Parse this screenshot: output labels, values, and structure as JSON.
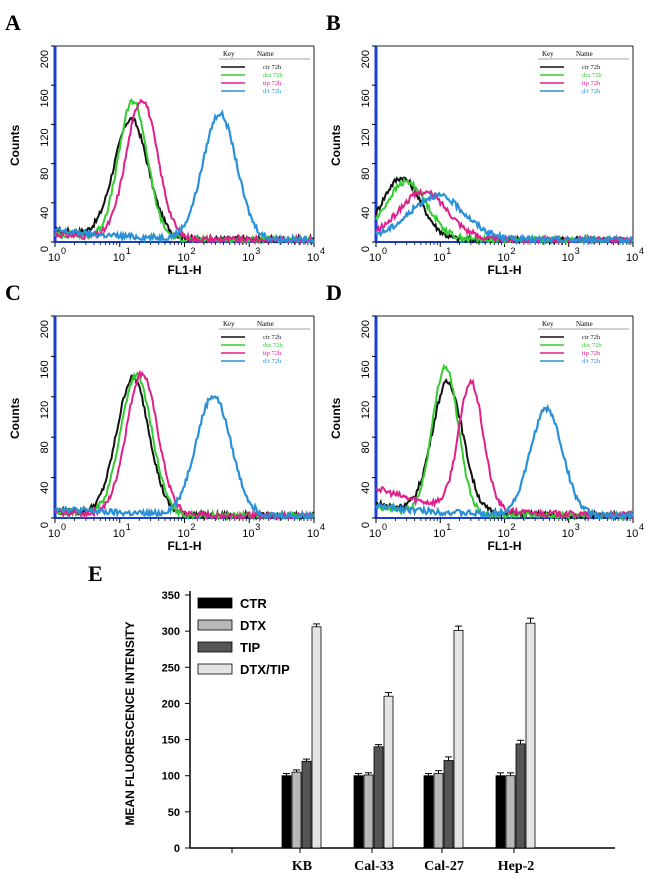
{
  "histograms": [
    {
      "panel_letter": "A",
      "ylabel": "Counts",
      "xlabel": "FL1-H",
      "x_ticks": [
        "10",
        "10",
        "10",
        "10",
        "10"
      ],
      "x_exponents": [
        "0",
        "1",
        "2",
        "3",
        "4"
      ],
      "y_ticks": [
        "0",
        "40",
        "80",
        "120",
        "160",
        "200"
      ],
      "legend": {
        "key_header": "Key",
        "name_header": "Name",
        "entries": [
          "ctr 72h",
          "dtx 72h",
          "tip 72h",
          "d/t 72h"
        ]
      },
      "colors": [
        "#111111",
        "#33cc33",
        "#e0208a",
        "#2a90d8"
      ],
      "curves": [
        {
          "name": "ctr 72h",
          "peak_x": 15,
          "peak_y": 120,
          "sigma": 0.26,
          "bg": 10
        },
        {
          "name": "dtx 72h",
          "peak_x": 16,
          "peak_y": 140,
          "sigma": 0.22,
          "bg": 6
        },
        {
          "name": "tip 72h",
          "peak_x": 22,
          "peak_y": 142,
          "sigma": 0.24,
          "bg": 6
        },
        {
          "name": "d/t 72h",
          "peak_x": 350,
          "peak_y": 128,
          "sigma": 0.26,
          "bg": 10
        }
      ]
    },
    {
      "panel_letter": "B",
      "ylabel": "Counts",
      "xlabel": "FL1-H",
      "x_ticks": [
        "10",
        "10",
        "10",
        "10",
        "10"
      ],
      "x_exponents": [
        "0",
        "1",
        "2",
        "3",
        "4"
      ],
      "y_ticks": [
        "0",
        "40",
        "80",
        "120",
        "160",
        "200"
      ],
      "legend": {
        "key_header": "Key",
        "name_header": "Name",
        "entries": [
          "ctr 72h",
          "dtx 72h",
          "tip 72h",
          "d/t 72h"
        ]
      },
      "colors": [
        "#111111",
        "#33cc33",
        "#e0208a",
        "#2a90d8"
      ],
      "curves": [
        {
          "name": "ctr 72h",
          "peak_x": 2.5,
          "peak_y": 62,
          "sigma": 0.3,
          "bg": 2
        },
        {
          "name": "dtx 72h",
          "peak_x": 3,
          "peak_y": 58,
          "sigma": 0.32,
          "bg": 2
        },
        {
          "name": "tip 72h",
          "peak_x": 5.5,
          "peak_y": 48,
          "sigma": 0.38,
          "bg": 2
        },
        {
          "name": "d/t 72h",
          "peak_x": 9,
          "peak_y": 44,
          "sigma": 0.42,
          "bg": 3
        }
      ]
    },
    {
      "panel_letter": "C",
      "ylabel": "Counts",
      "xlabel": "FL1-H",
      "x_ticks": [
        "10",
        "10",
        "10",
        "10",
        "10"
      ],
      "x_exponents": [
        "0",
        "1",
        "2",
        "3",
        "4"
      ],
      "y_ticks": [
        "0",
        "40",
        "80",
        "120",
        "160",
        "200"
      ],
      "legend": {
        "key_header": "Key",
        "name_header": "Name",
        "entries": [
          "ctr 72h",
          "dtx 72h",
          "tip 72h",
          "d/t 72h"
        ]
      },
      "colors": [
        "#111111",
        "#33cc33",
        "#e0208a",
        "#2a90d8"
      ],
      "curves": [
        {
          "name": "ctr 72h",
          "peak_x": 16,
          "peak_y": 135,
          "sigma": 0.25,
          "bg": 5
        },
        {
          "name": "dtx 72h",
          "peak_x": 18,
          "peak_y": 138,
          "sigma": 0.24,
          "bg": 4
        },
        {
          "name": "tip 72h",
          "peak_x": 22,
          "peak_y": 140,
          "sigma": 0.24,
          "bg": 4
        },
        {
          "name": "d/t 72h",
          "peak_x": 280,
          "peak_y": 118,
          "sigma": 0.27,
          "bg": 8
        }
      ]
    },
    {
      "panel_letter": "D",
      "ylabel": "Counts",
      "xlabel": "FL1-H",
      "x_ticks": [
        "10",
        "10",
        "10",
        "10",
        "10"
      ],
      "x_exponents": [
        "0",
        "1",
        "2",
        "3",
        "4"
      ],
      "y_ticks": [
        "0",
        "40",
        "80",
        "120",
        "160",
        "200"
      ],
      "legend": {
        "key_header": "Key",
        "name_header": "Name",
        "entries": [
          "ctr 72h",
          "dtx 72h",
          "tip 72h",
          "d/t 72h"
        ]
      },
      "colors": [
        "#111111",
        "#33cc33",
        "#e0208a",
        "#2a90d8"
      ],
      "curves": [
        {
          "name": "ctr 72h",
          "peak_x": 13,
          "peak_y": 128,
          "sigma": 0.24,
          "bg": 12
        },
        {
          "name": "dtx 72h",
          "peak_x": 12,
          "peak_y": 145,
          "sigma": 0.2,
          "bg": 8
        },
        {
          "name": "tip 72h",
          "peak_x": 30,
          "peak_y": 125,
          "sigma": 0.19,
          "bg": 28
        },
        {
          "name": "d/t 72h",
          "peak_x": 450,
          "peak_y": 105,
          "sigma": 0.25,
          "bg": 10
        }
      ]
    }
  ],
  "bar": {
    "panel_letter": "E",
    "ylabel": "MEAN FLUORESCENCE INTENSITY",
    "y_ticks": [
      "0",
      "50",
      "100",
      "150",
      "200",
      "250",
      "300",
      "350"
    ],
    "legend": [
      "CTR",
      "DTX",
      "TIP",
      "DTX/TIP"
    ]
  },
  "chart_data": [
    {
      "type": "line",
      "title": "A",
      "xlabel": "FL1-H",
      "ylabel": "Counts",
      "xscale": "log",
      "xlim": [
        1,
        10000
      ],
      "ylim": [
        0,
        200
      ],
      "series": [
        {
          "name": "ctr 72h",
          "peak_x": 15,
          "peak_count": 120
        },
        {
          "name": "dtx 72h",
          "peak_x": 16,
          "peak_count": 140
        },
        {
          "name": "tip 72h",
          "peak_x": 22,
          "peak_count": 142
        },
        {
          "name": "d/t 72h",
          "peak_x": 350,
          "peak_count": 128
        }
      ]
    },
    {
      "type": "line",
      "title": "B",
      "xlabel": "FL1-H",
      "ylabel": "Counts",
      "xscale": "log",
      "xlim": [
        1,
        10000
      ],
      "ylim": [
        0,
        200
      ],
      "series": [
        {
          "name": "ctr 72h",
          "peak_x": 2.5,
          "peak_count": 62
        },
        {
          "name": "dtx 72h",
          "peak_x": 3,
          "peak_count": 58
        },
        {
          "name": "tip 72h",
          "peak_x": 5.5,
          "peak_count": 48
        },
        {
          "name": "d/t 72h",
          "peak_x": 9,
          "peak_count": 44
        }
      ]
    },
    {
      "type": "line",
      "title": "C",
      "xlabel": "FL1-H",
      "ylabel": "Counts",
      "xscale": "log",
      "xlim": [
        1,
        10000
      ],
      "ylim": [
        0,
        200
      ],
      "series": [
        {
          "name": "ctr 72h",
          "peak_x": 16,
          "peak_count": 135
        },
        {
          "name": "dtx 72h",
          "peak_x": 18,
          "peak_count": 138
        },
        {
          "name": "tip 72h",
          "peak_x": 22,
          "peak_count": 140
        },
        {
          "name": "d/t 72h",
          "peak_x": 280,
          "peak_count": 118
        }
      ]
    },
    {
      "type": "line",
      "title": "D",
      "xlabel": "FL1-H",
      "ylabel": "Counts",
      "xscale": "log",
      "xlim": [
        1,
        10000
      ],
      "ylim": [
        0,
        200
      ],
      "series": [
        {
          "name": "ctr 72h",
          "peak_x": 13,
          "peak_count": 128
        },
        {
          "name": "dtx 72h",
          "peak_x": 12,
          "peak_count": 145
        },
        {
          "name": "tip 72h",
          "peak_x": 30,
          "peak_count": 125
        },
        {
          "name": "d/t 72h",
          "peak_x": 450,
          "peak_count": 105
        }
      ]
    },
    {
      "type": "bar",
      "title": "E",
      "ylabel": "MEAN FLUORESCENCE INTENSITY",
      "ylim": [
        0,
        350
      ],
      "categories": [
        "",
        "KB",
        "Cal-33",
        "Cal-27",
        "Hep-2"
      ],
      "series": [
        {
          "name": "CTR",
          "color": "#000000",
          "values": [
            null,
            100,
            100,
            100,
            100
          ],
          "errors": [
            null,
            3,
            3,
            3,
            4
          ]
        },
        {
          "name": "DTX",
          "color": "#b8b8b8",
          "values": [
            null,
            105,
            101,
            103,
            100
          ],
          "errors": [
            null,
            3,
            3,
            4,
            4
          ]
        },
        {
          "name": "TIP",
          "color": "#555555",
          "values": [
            null,
            120,
            140,
            121,
            144
          ],
          "errors": [
            null,
            3,
            3,
            5,
            5
          ]
        },
        {
          "name": "DTX/TIP",
          "color": "#e4e4e4",
          "values": [
            null,
            306,
            210,
            301,
            311
          ],
          "errors": [
            null,
            4,
            5,
            6,
            7
          ]
        }
      ]
    }
  ]
}
